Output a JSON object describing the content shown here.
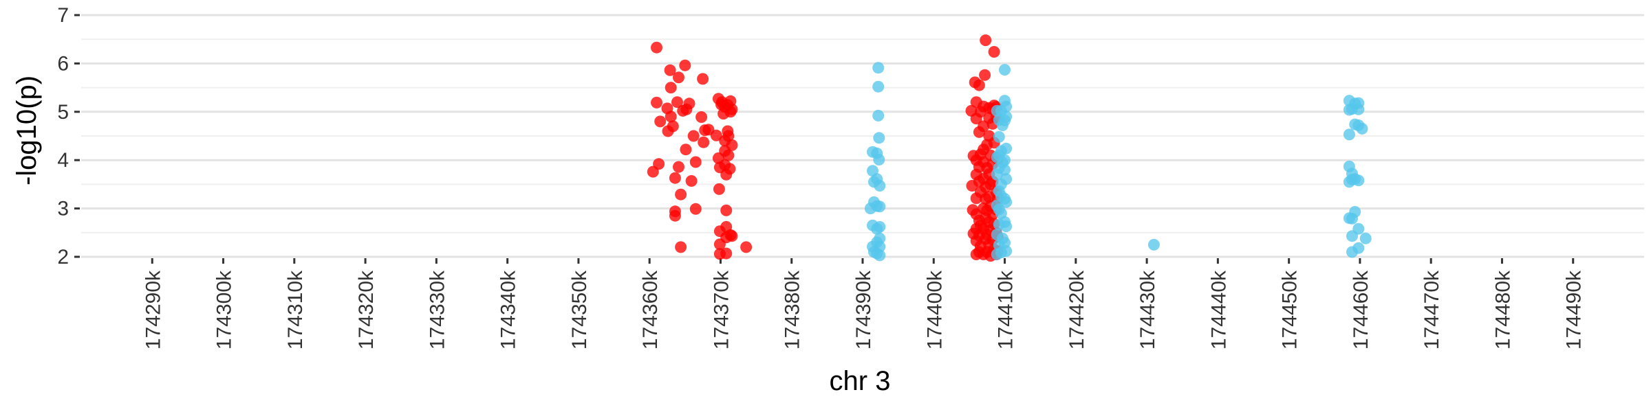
{
  "chart_data": {
    "type": "scatter",
    "xlabel": "chr 3",
    "ylabel": "-log10(p)",
    "xlim": [
      174280,
      174500
    ],
    "ylim": [
      2,
      7
    ],
    "x_ticks": [
      174290,
      174300,
      174310,
      174320,
      174330,
      174340,
      174350,
      174360,
      174370,
      174380,
      174390,
      174400,
      174410,
      174420,
      174430,
      174440,
      174450,
      174460,
      174470,
      174480,
      174490
    ],
    "x_tick_labels": [
      "174290k",
      "174300k",
      "174310k",
      "174320k",
      "174330k",
      "174340k",
      "174350k",
      "174360k",
      "174370k",
      "174380k",
      "174390k",
      "174400k",
      "174410k",
      "174420k",
      "174430k",
      "174440k",
      "174450k",
      "174460k",
      "174470k",
      "174480k",
      "174490k"
    ],
    "y_ticks": [
      2,
      3,
      4,
      5,
      6,
      7
    ],
    "y_tick_labels": [
      "2",
      "3",
      "4",
      "5",
      "6",
      "7"
    ],
    "grid": true,
    "legend": "none",
    "series": [
      {
        "color": "#FF0000",
        "points": [
          [
            174361.0,
            6.33
          ],
          [
            174361.0,
            5.19
          ],
          [
            174360.5,
            3.76
          ],
          [
            174361.3,
            3.92
          ],
          [
            174361.5,
            4.8
          ],
          [
            174362.5,
            5.07
          ],
          [
            174362.6,
            4.6
          ],
          [
            174362.9,
            5.86
          ],
          [
            174363.0,
            4.9
          ],
          [
            174363.0,
            5.5
          ],
          [
            174363.3,
            4.7
          ],
          [
            174363.6,
            3.63
          ],
          [
            174363.6,
            2.94
          ],
          [
            174363.6,
            2.85
          ],
          [
            174363.9,
            5.2
          ],
          [
            174364.1,
            3.86
          ],
          [
            174364.1,
            5.71
          ],
          [
            174364.4,
            3.29
          ],
          [
            174364.4,
            2.2
          ],
          [
            174364.7,
            5.02
          ],
          [
            174365.0,
            5.96
          ],
          [
            174365.1,
            4.22
          ],
          [
            174365.2,
            5.05
          ],
          [
            174365.6,
            5.17
          ],
          [
            174365.9,
            3.57
          ],
          [
            174366.2,
            4.5
          ],
          [
            174366.5,
            3.96
          ],
          [
            174366.5,
            2.99
          ],
          [
            174367.3,
            4.89
          ],
          [
            174367.5,
            5.68
          ],
          [
            174367.6,
            4.37
          ],
          [
            174367.8,
            4.62
          ],
          [
            174368.3,
            4.63
          ],
          [
            174369.4,
            4.51
          ],
          [
            174369.7,
            5.27
          ],
          [
            174369.7,
            4.04
          ],
          [
            174369.8,
            3.4
          ],
          [
            174369.9,
            3.85
          ],
          [
            174369.9,
            2.53
          ],
          [
            174369.9,
            2.26
          ],
          [
            174369.9,
            2.06
          ],
          [
            174370.1,
            5.15
          ],
          [
            174370.2,
            5.2
          ],
          [
            174370.4,
            4.96
          ],
          [
            174370.6,
            5.1
          ],
          [
            174370.6,
            4.4
          ],
          [
            174370.6,
            4.19
          ],
          [
            174370.6,
            3.9
          ],
          [
            174370.8,
            3.7
          ],
          [
            174370.8,
            2.96
          ],
          [
            174370.8,
            2.62
          ],
          [
            174370.8,
            2.4
          ],
          [
            174370.8,
            2.07
          ],
          [
            174371.0,
            5.14
          ],
          [
            174371.0,
            4.6
          ],
          [
            174371.1,
            4.5
          ],
          [
            174371.1,
            4.1
          ],
          [
            174371.3,
            3.82
          ],
          [
            174371.4,
            5.22
          ],
          [
            174371.4,
            5.0
          ],
          [
            174371.4,
            2.45
          ],
          [
            174371.6,
            5.05
          ],
          [
            174371.6,
            4.31
          ],
          [
            174371.6,
            2.43
          ],
          [
            174373.6,
            2.2
          ],
          [
            174405.3,
            5.02
          ],
          [
            174405.4,
            3.47
          ],
          [
            174405.5,
            2.97
          ],
          [
            174405.6,
            4.09
          ],
          [
            174405.6,
            2.48
          ],
          [
            174405.8,
            5.61
          ],
          [
            174406.0,
            5.2
          ],
          [
            174406.0,
            4.86
          ],
          [
            174406.0,
            4.0
          ],
          [
            174406.0,
            3.7
          ],
          [
            174406.0,
            3.21
          ],
          [
            174406.0,
            2.88
          ],
          [
            174406.0,
            2.58
          ],
          [
            174406.0,
            2.33
          ],
          [
            174406.0,
            2.05
          ],
          [
            174406.4,
            5.55
          ],
          [
            174406.4,
            4.58
          ],
          [
            174406.4,
            3.86
          ],
          [
            174406.4,
            3.56
          ],
          [
            174406.4,
            2.75
          ],
          [
            174406.4,
            2.44
          ],
          [
            174406.4,
            2.1
          ],
          [
            174406.6,
            5.0
          ],
          [
            174406.6,
            4.12
          ],
          [
            174406.6,
            3.34
          ],
          [
            174406.6,
            2.65
          ],
          [
            174406.6,
            2.22
          ],
          [
            174407.0,
            5.11
          ],
          [
            174407.0,
            4.7
          ],
          [
            174407.0,
            4.22
          ],
          [
            174407.0,
            3.96
          ],
          [
            174407.0,
            3.62
          ],
          [
            174407.0,
            3.0
          ],
          [
            174407.0,
            2.58
          ],
          [
            174407.0,
            2.05
          ],
          [
            174407.2,
            5.76
          ],
          [
            174407.3,
            6.48
          ],
          [
            174407.3,
            3.44
          ],
          [
            174407.3,
            3.2
          ],
          [
            174407.3,
            2.8
          ],
          [
            174407.3,
            2.37
          ],
          [
            174407.5,
            4.32
          ],
          [
            174407.5,
            3.84
          ],
          [
            174407.5,
            2.96
          ],
          [
            174407.5,
            2.46
          ],
          [
            174407.5,
            2.1
          ],
          [
            174407.8,
            5.08
          ],
          [
            174407.8,
            4.87
          ],
          [
            174407.8,
            4.5
          ],
          [
            174407.8,
            3.71
          ],
          [
            174407.8,
            3.24
          ],
          [
            174407.8,
            2.72
          ],
          [
            174407.8,
            2.25
          ],
          [
            174408.0,
            4.1
          ],
          [
            174408.0,
            3.5
          ],
          [
            174408.0,
            3.05
          ],
          [
            174408.0,
            2.55
          ],
          [
            174408.0,
            2.02
          ],
          [
            174408.3,
            5.05
          ],
          [
            174408.3,
            4.75
          ],
          [
            174408.3,
            3.92
          ],
          [
            174408.3,
            3.56
          ],
          [
            174408.3,
            2.88
          ],
          [
            174408.3,
            2.36
          ],
          [
            174408.5,
            6.24
          ],
          [
            174408.5,
            5.13
          ],
          [
            174408.5,
            4.36
          ],
          [
            174408.5,
            2.68
          ],
          [
            174408.5,
            2.15
          ],
          [
            174408.8,
            5.1
          ],
          [
            174408.8,
            4.88
          ],
          [
            174408.8,
            4.05
          ],
          [
            174408.8,
            3.34
          ],
          [
            174408.8,
            2.98
          ],
          [
            174408.8,
            2.5
          ],
          [
            174408.8,
            2.05
          ],
          [
            174409.0,
            4.02
          ],
          [
            174409.0,
            3.2
          ],
          [
            174409.0,
            2.42
          ],
          [
            174409.0,
            2.12
          ]
        ]
      },
      {
        "color": "#56C6EC",
        "points": [
          [
            174391.1,
            3.0
          ],
          [
            174391.4,
            4.17
          ],
          [
            174391.4,
            3.78
          ],
          [
            174391.4,
            2.65
          ],
          [
            174391.4,
            2.21
          ],
          [
            174391.6,
            3.55
          ],
          [
            174391.6,
            3.13
          ],
          [
            174391.6,
            2.1
          ],
          [
            174392.0,
            4.14
          ],
          [
            174392.0,
            3.61
          ],
          [
            174392.0,
            3.05
          ],
          [
            174392.0,
            2.58
          ],
          [
            174392.0,
            2.3
          ],
          [
            174392.0,
            2.07
          ],
          [
            174392.2,
            5.91
          ],
          [
            174392.2,
            5.52
          ],
          [
            174392.2,
            4.92
          ],
          [
            174392.3,
            4.46
          ],
          [
            174392.3,
            4.01
          ],
          [
            174392.4,
            3.47
          ],
          [
            174392.4,
            3.04
          ],
          [
            174392.4,
            2.62
          ],
          [
            174392.4,
            2.38
          ],
          [
            174392.4,
            2.21
          ],
          [
            174392.4,
            2.03
          ],
          [
            174408.9,
            5.02
          ],
          [
            174408.9,
            4.06
          ],
          [
            174408.9,
            3.7
          ],
          [
            174408.9,
            3.06
          ],
          [
            174408.9,
            2.46
          ],
          [
            174408.9,
            2.05
          ],
          [
            174409.2,
            4.83
          ],
          [
            174409.2,
            4.48
          ],
          [
            174409.2,
            4.1
          ],
          [
            174409.2,
            3.84
          ],
          [
            174409.2,
            3.36
          ],
          [
            174409.2,
            2.98
          ],
          [
            174409.2,
            2.67
          ],
          [
            174409.2,
            2.24
          ],
          [
            174409.5,
            5.02
          ],
          [
            174409.5,
            4.19
          ],
          [
            174409.5,
            3.5
          ],
          [
            174409.5,
            3.26
          ],
          [
            174409.5,
            2.9
          ],
          [
            174409.5,
            2.09
          ],
          [
            174409.7,
            4.72
          ],
          [
            174409.7,
            3.95
          ],
          [
            174409.7,
            2.38
          ],
          [
            174410.0,
            5.87
          ],
          [
            174410.0,
            5.23
          ],
          [
            174410.0,
            4.82
          ],
          [
            174410.0,
            4.0
          ],
          [
            174410.0,
            3.8
          ],
          [
            174410.0,
            3.2
          ],
          [
            174410.0,
            2.72
          ],
          [
            174410.0,
            2.29
          ],
          [
            174410.2,
            5.11
          ],
          [
            174410.2,
            4.9
          ],
          [
            174410.2,
            4.24
          ],
          [
            174410.2,
            3.61
          ],
          [
            174410.2,
            3.13
          ],
          [
            174410.2,
            2.63
          ],
          [
            174410.2,
            2.12
          ],
          [
            174431.0,
            2.25
          ],
          [
            174458.5,
            5.23
          ],
          [
            174458.5,
            5.04
          ],
          [
            174458.5,
            4.53
          ],
          [
            174458.5,
            3.87
          ],
          [
            174458.5,
            3.55
          ],
          [
            174458.5,
            2.8
          ],
          [
            174458.9,
            5.06
          ],
          [
            174458.9,
            3.72
          ],
          [
            174458.9,
            3.6
          ],
          [
            174458.9,
            2.79
          ],
          [
            174458.9,
            2.43
          ],
          [
            174458.9,
            2.1
          ],
          [
            174459.3,
            5.17
          ],
          [
            174459.3,
            4.74
          ],
          [
            174459.3,
            3.61
          ],
          [
            174459.3,
            2.93
          ],
          [
            174459.8,
            5.18
          ],
          [
            174459.8,
            5.05
          ],
          [
            174459.8,
            4.72
          ],
          [
            174459.8,
            3.58
          ],
          [
            174459.8,
            2.58
          ],
          [
            174459.8,
            2.18
          ],
          [
            174460.3,
            4.65
          ],
          [
            174460.8,
            2.38
          ]
        ]
      }
    ]
  }
}
